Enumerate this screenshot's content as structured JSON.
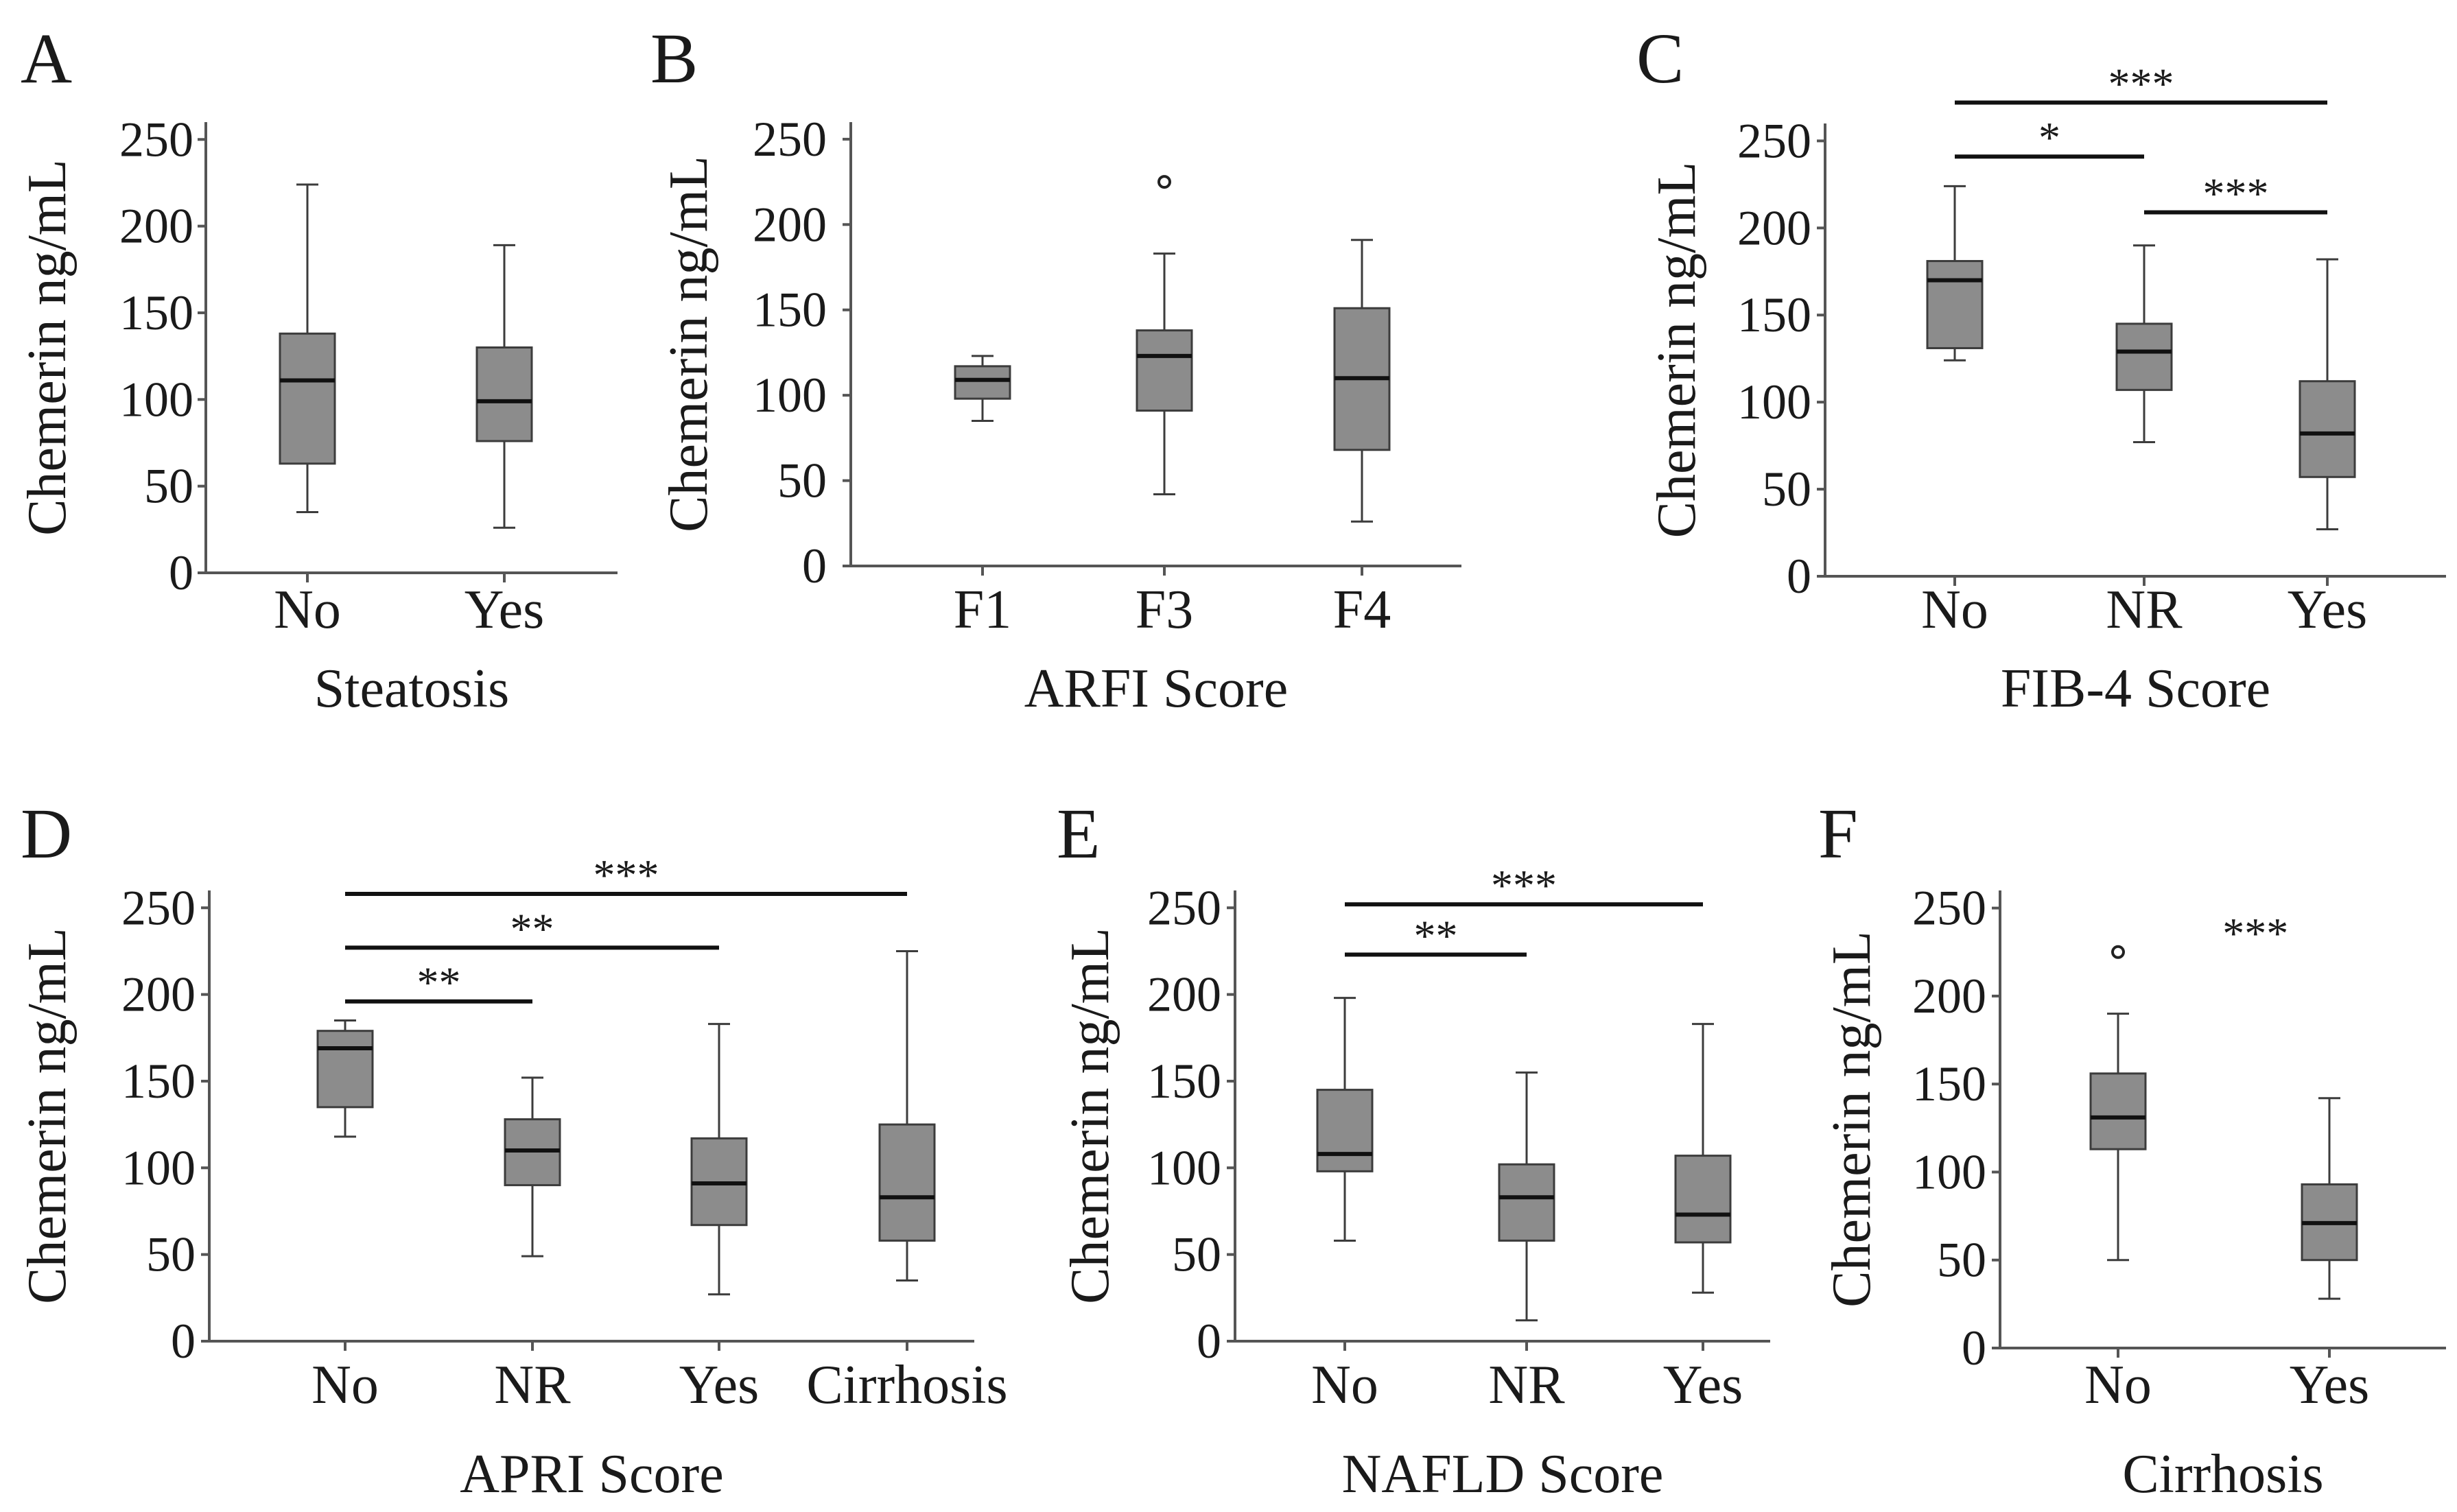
{
  "chart_data": [
    {
      "panel": "A",
      "type": "box",
      "ylabel": "Chemerin ng/mL",
      "xlabel": "Steatosis",
      "ylim": [
        0,
        260
      ],
      "yticks": [
        0,
        50,
        100,
        150,
        200,
        250
      ],
      "categories": [
        "No",
        "Yes"
      ],
      "boxes": [
        {
          "min": 35,
          "q1": 63,
          "median": 111,
          "q3": 138,
          "max": 224,
          "outliers": []
        },
        {
          "min": 26,
          "q1": 76,
          "median": 99,
          "q3": 130,
          "max": 189,
          "outliers": []
        }
      ],
      "significance": []
    },
    {
      "panel": "B",
      "type": "box",
      "ylabel": "Chemerin ng/mL",
      "xlabel": "ARFI  Score",
      "ylim": [
        0,
        260
      ],
      "yticks": [
        0,
        50,
        100,
        150,
        200,
        250
      ],
      "categories": [
        "F1",
        "F3",
        "F4"
      ],
      "boxes": [
        {
          "min": 85,
          "q1": 98,
          "median": 109,
          "q3": 117,
          "max": 123,
          "outliers": []
        },
        {
          "min": 42,
          "q1": 91,
          "median": 123,
          "q3": 138,
          "max": 183,
          "outliers": [
            225
          ]
        },
        {
          "min": 26,
          "q1": 68,
          "median": 110,
          "q3": 151,
          "max": 191,
          "outliers": []
        }
      ],
      "significance": []
    },
    {
      "panel": "C",
      "type": "box",
      "ylabel": "Chemerin ng/mL",
      "xlabel": "FIB-4  Score",
      "ylim": [
        0,
        260
      ],
      "yticks": [
        0,
        50,
        100,
        150,
        200,
        250
      ],
      "categories": [
        "No",
        "NR",
        "Yes"
      ],
      "boxes": [
        {
          "min": 124,
          "q1": 131,
          "median": 170,
          "q3": 181,
          "max": 224,
          "outliers": []
        },
        {
          "min": 77,
          "q1": 107,
          "median": 129,
          "q3": 145,
          "max": 190,
          "outliers": []
        },
        {
          "min": 27,
          "q1": 57,
          "median": 82,
          "q3": 112,
          "max": 182,
          "outliers": []
        }
      ],
      "significance": [
        {
          "from": 0,
          "to": 1,
          "label": "*",
          "level": 241
        },
        {
          "from": 0,
          "to": 2,
          "label": "***",
          "level": 272
        },
        {
          "from": 1,
          "to": 2,
          "label": "***",
          "level": 209
        }
      ]
    },
    {
      "panel": "D",
      "type": "box",
      "ylabel": "Chemerin ng/mL",
      "xlabel": "APRI  Score",
      "ylim": [
        0,
        260
      ],
      "yticks": [
        0,
        50,
        100,
        150,
        200,
        250
      ],
      "categories": [
        "No",
        "NR",
        "Yes",
        "Cirrhosis"
      ],
      "boxes": [
        {
          "min": 118,
          "q1": 135,
          "median": 169,
          "q3": 179,
          "max": 185,
          "outliers": []
        },
        {
          "min": 49,
          "q1": 90,
          "median": 110,
          "q3": 128,
          "max": 152,
          "outliers": []
        },
        {
          "min": 27,
          "q1": 67,
          "median": 91,
          "q3": 117,
          "max": 183,
          "outliers": []
        },
        {
          "min": 35,
          "q1": 58,
          "median": 83,
          "q3": 125,
          "max": 225,
          "outliers": []
        }
      ],
      "significance": [
        {
          "from": 0,
          "to": 1,
          "label": "**",
          "level": 196
        },
        {
          "from": 0,
          "to": 2,
          "label": "**",
          "level": 227
        },
        {
          "from": 0,
          "to": 3,
          "label": "***",
          "level": 258
        }
      ]
    },
    {
      "panel": "E",
      "type": "box",
      "ylabel": "Chemerin ng/mL",
      "xlabel": "NAFLD  Score",
      "ylim": [
        0,
        260
      ],
      "yticks": [
        0,
        50,
        100,
        150,
        200,
        250
      ],
      "categories": [
        "No",
        "NR",
        "Yes"
      ],
      "boxes": [
        {
          "min": 58,
          "q1": 98,
          "median": 108,
          "q3": 145,
          "max": 198,
          "outliers": []
        },
        {
          "min": 12,
          "q1": 58,
          "median": 83,
          "q3": 102,
          "max": 155,
          "outliers": []
        },
        {
          "min": 28,
          "q1": 57,
          "median": 73,
          "q3": 107,
          "max": 183,
          "outliers": []
        }
      ],
      "significance": [
        {
          "from": 0,
          "to": 1,
          "label": "**",
          "level": 223
        },
        {
          "from": 0,
          "to": 2,
          "label": "***",
          "level": 252
        }
      ]
    },
    {
      "panel": "F",
      "type": "box",
      "ylabel": "Chemerin ng/mL",
      "xlabel": "Cirrhosis",
      "ylim": [
        0,
        260
      ],
      "yticks": [
        0,
        50,
        100,
        150,
        200,
        250
      ],
      "categories": [
        "No",
        "Yes"
      ],
      "boxes": [
        {
          "min": 50,
          "q1": 113,
          "median": 131,
          "q3": 156,
          "max": 190,
          "outliers": [
            225
          ]
        },
        {
          "min": 28,
          "q1": 50,
          "median": 71,
          "q3": 93,
          "max": 142,
          "outliers": []
        }
      ],
      "significance": [
        {
          "from": 0.65,
          "to": 0.65,
          "label": "***",
          "level": 225
        }
      ]
    }
  ]
}
